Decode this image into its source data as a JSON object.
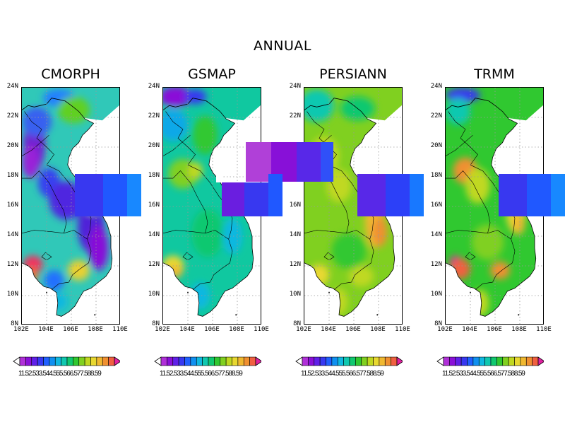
{
  "figure": {
    "title": "ANNUAL",
    "panels": [
      {
        "title": "CMORPH",
        "scheme": "cmorph"
      },
      {
        "title": "GSMAP",
        "scheme": "gsmap"
      },
      {
        "title": "PERSIANN",
        "scheme": "persiann"
      },
      {
        "title": "TRMM",
        "scheme": "trmm"
      }
    ],
    "lat_labels": [
      "24N",
      "22N",
      "20N",
      "18N",
      "16N",
      "14N",
      "12N",
      "10N",
      "8N"
    ],
    "lon_labels": [
      "102E",
      "104E",
      "106E",
      "108E",
      "110E"
    ],
    "colorbar_label_text": "11.52.533.544.555.566.577.588.59",
    "colorbar_levels": [
      "1",
      "1.5",
      "2",
      "2.5",
      "3",
      "3.5",
      "4",
      "4.5",
      "5",
      "5.5",
      "6",
      "6.5",
      "7",
      "7.5",
      "8",
      "8.5",
      "9"
    ],
    "colorbar_colors": [
      "#b030d8",
      "#8a10d8",
      "#6020e8",
      "#3838f0",
      "#2060ff",
      "#1090f0",
      "#10b8e0",
      "#10c8b0",
      "#10c870",
      "#30c830",
      "#80d020",
      "#c0d820",
      "#e8d830",
      "#f0b830",
      "#f09030",
      "#f06040",
      "#f03060",
      "#e020a0"
    ]
  }
}
